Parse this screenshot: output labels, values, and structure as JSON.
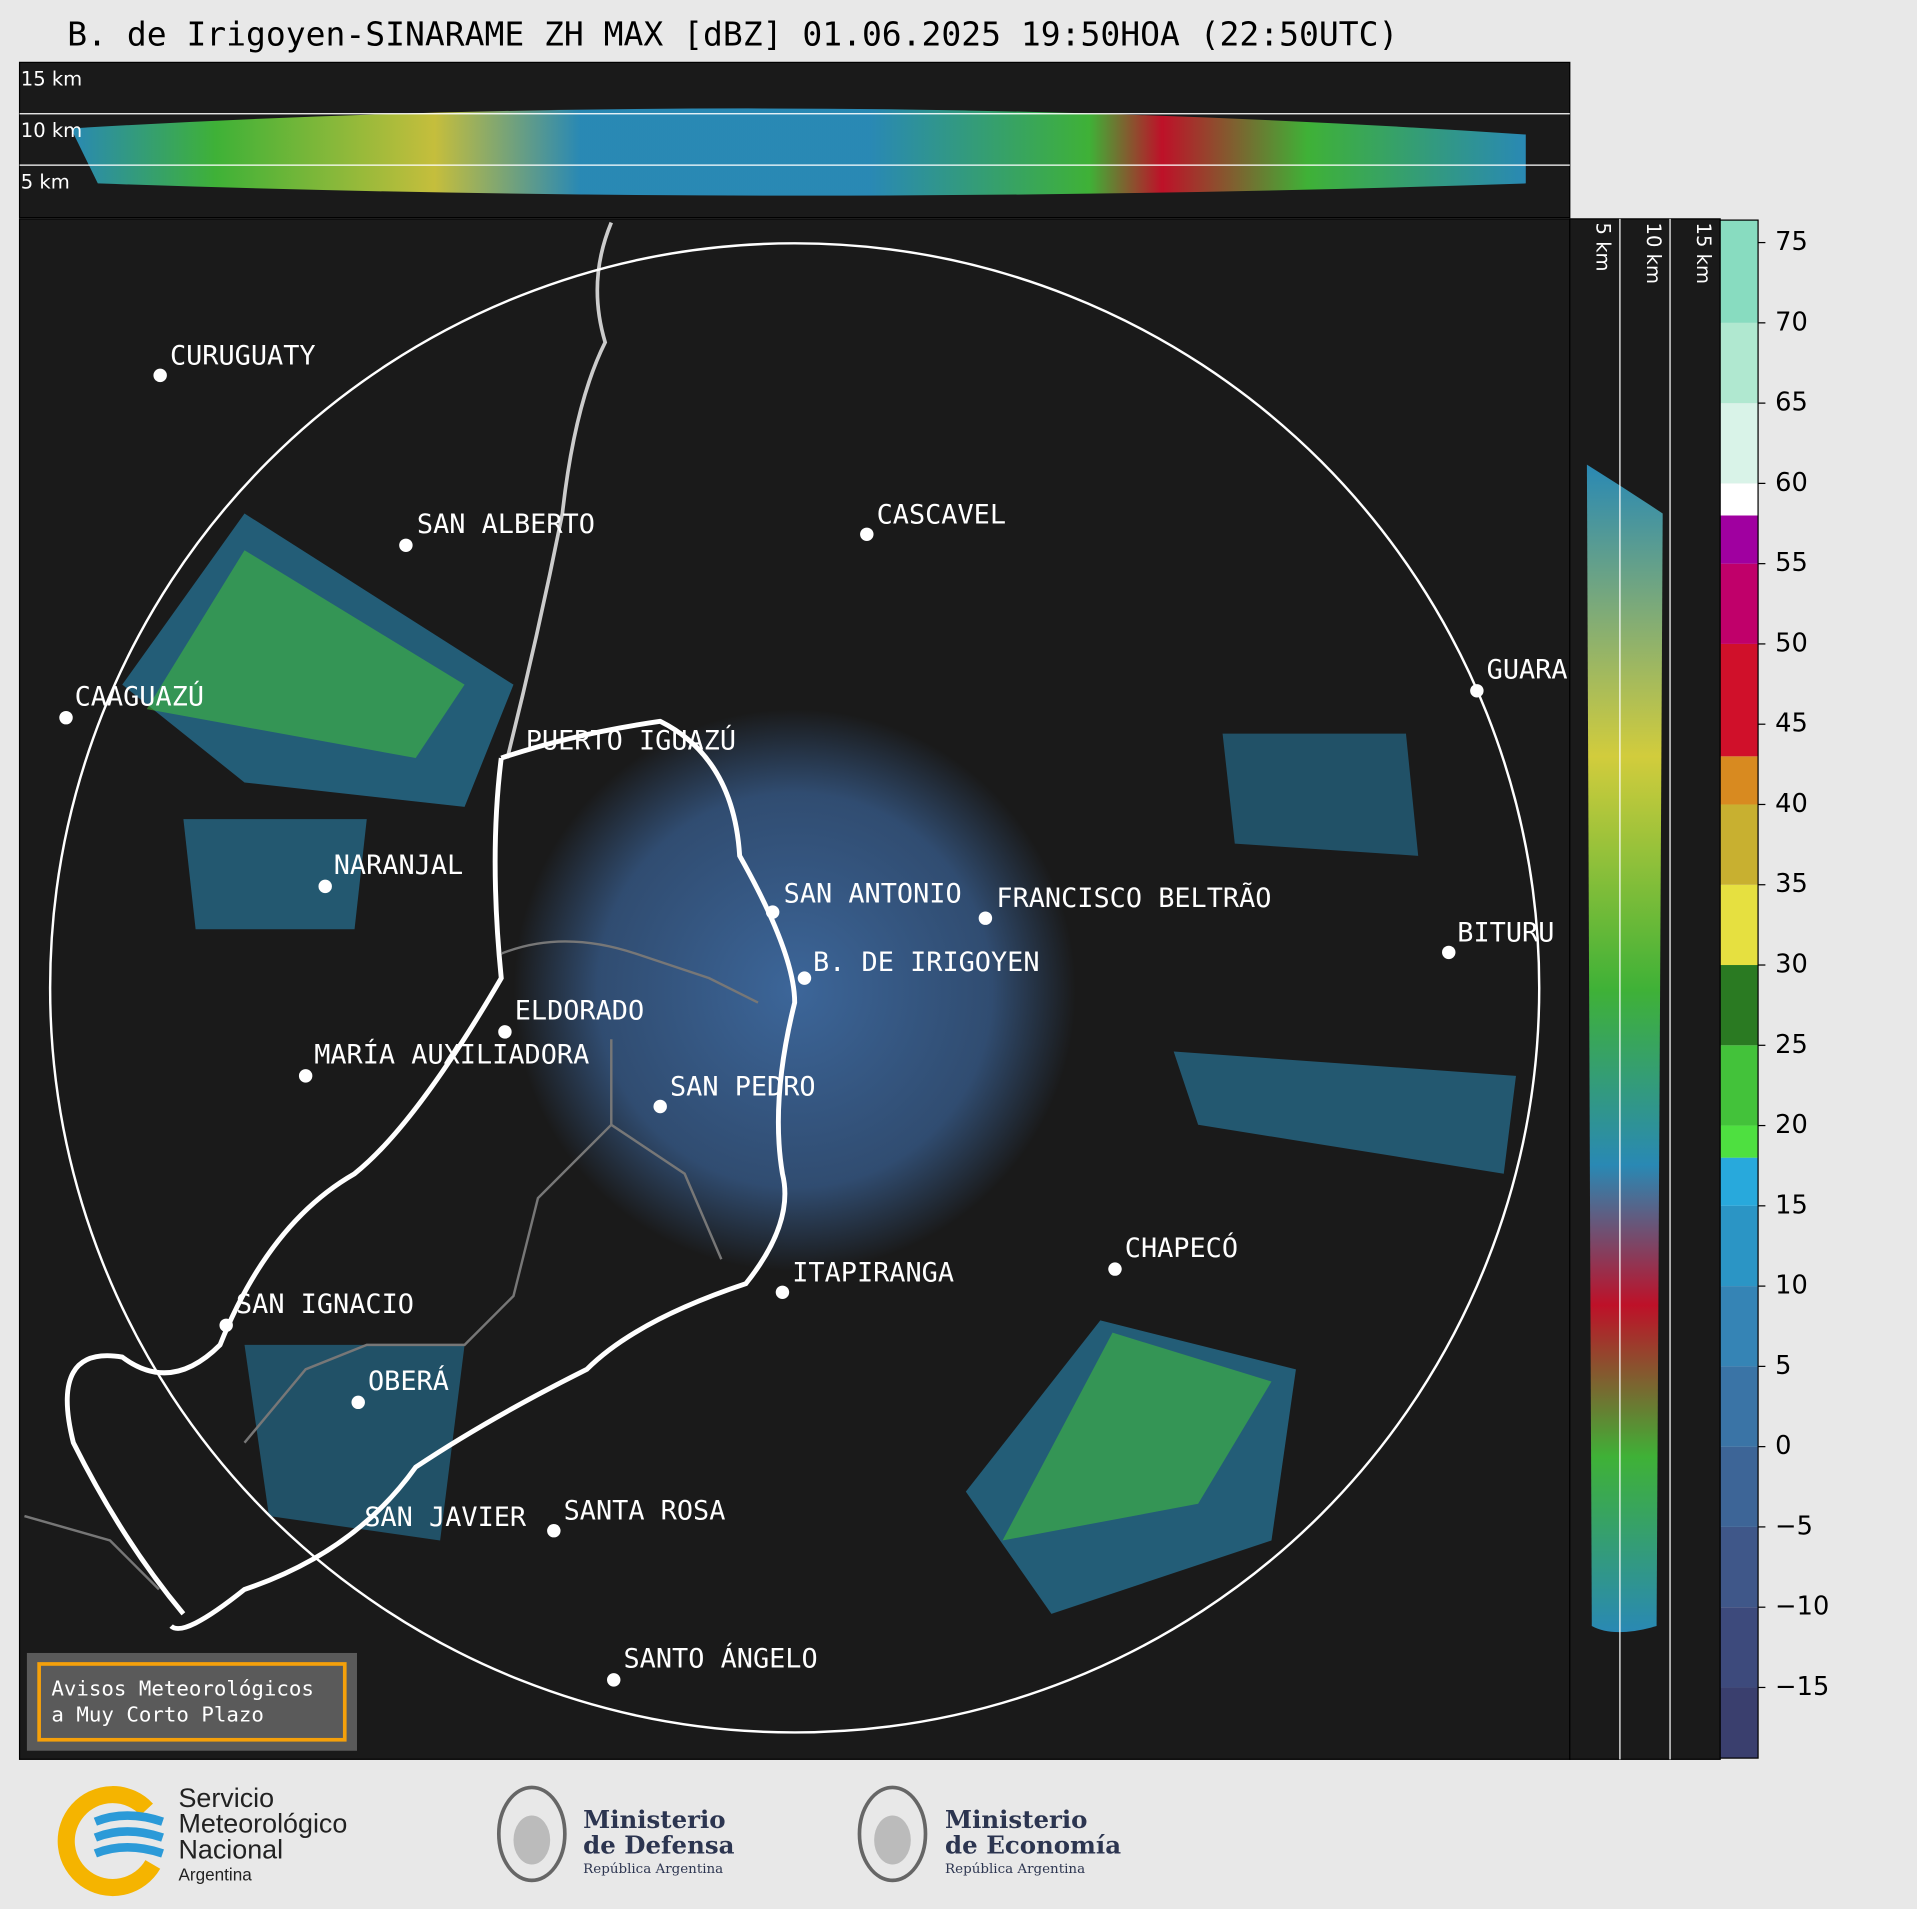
{
  "title": "B. de Irigoyen-SINARAME ZH MAX [dBZ] 01.06.2025 19:50HOA (22:50UTC)",
  "cross_section_top": {
    "height_labels": [
      "15 km",
      "10 km",
      "5 km"
    ]
  },
  "cross_section_side": {
    "height_labels": [
      "5 km",
      "10 km",
      "15 km"
    ]
  },
  "map": {
    "cities": [
      "CURUGUATY",
      "SAN ALBERTO",
      "CAAGUAZÚ",
      "PUERTO IGUAZÚ",
      "CASCAVEL",
      "GUARA",
      "NARANJAL",
      "SAN ANTONIO",
      "FRANCISCO BELTRÃO",
      "BITURU",
      "B. DE IRIGOYEN",
      "ELDORADO",
      "MARÍA AUXILIADORA",
      "SAN PEDRO",
      "CHAPECÓ",
      "ITAPIRANGA",
      "SAN IGNACIO",
      "OBERÁ",
      "SAN JAVIER",
      "SANTA ROSA",
      "SANTO ÁNGELO"
    ]
  },
  "colorbar": {
    "lim": [
      -19.4,
      76.4
    ],
    "ticks": [
      75,
      70,
      65,
      60,
      55,
      50,
      45,
      40,
      35,
      30,
      25,
      20,
      15,
      10,
      5,
      0,
      {
        "value": -5,
        "label": "−5"
      },
      {
        "value": -10,
        "label": "−10"
      },
      {
        "value": -15,
        "label": "−15"
      }
    ],
    "bands": [
      {
        "from": -19.4,
        "to": -15,
        "color": "#3a3f6e"
      },
      {
        "from": -15,
        "to": -10,
        "color": "#3d4a7c"
      },
      {
        "from": -10,
        "to": -5,
        "color": "#3f5789"
      },
      {
        "from": -5,
        "to": 0,
        "color": "#3d6597"
      },
      {
        "from": 0,
        "to": 5,
        "color": "#3a74a6"
      },
      {
        "from": 5,
        "to": 10,
        "color": "#3584b5"
      },
      {
        "from": 10,
        "to": 15,
        "color": "#2b95c5"
      },
      {
        "from": 15,
        "to": 18,
        "color": "#28a9dc"
      },
      {
        "from": 18,
        "to": 20,
        "color": "#4ee040"
      },
      {
        "from": 20,
        "to": 25,
        "color": "#43c23a"
      },
      {
        "from": 25,
        "to": 30,
        "color": "#2a7a22"
      },
      {
        "from": 30,
        "to": 35,
        "color": "#e6e040"
      },
      {
        "from": 35,
        "to": 40,
        "color": "#c8b030"
      },
      {
        "from": 40,
        "to": 43,
        "color": "#d88a20"
      },
      {
        "from": 43,
        "to": 50,
        "color": "#d0102a"
      },
      {
        "from": 50,
        "to": 55,
        "color": "#c0006a"
      },
      {
        "from": 55,
        "to": 58,
        "color": "#a000a0"
      },
      {
        "from": 58,
        "to": 60,
        "color": "#ffffff"
      },
      {
        "from": 60,
        "to": 65,
        "color": "#d9f3e8"
      },
      {
        "from": 65,
        "to": 70,
        "color": "#b0e8d0"
      },
      {
        "from": 70,
        "to": 76.4,
        "color": "#88dcc0"
      }
    ]
  },
  "notice": {
    "lines": [
      "Avisos Meteorológicos",
      "a Muy Corto Plazo"
    ]
  },
  "logos": [
    {
      "lines": [
        "Servicio",
        "Meteorológico",
        "Nacional"
      ],
      "sub": "Argentina"
    },
    {
      "lines": [
        "Ministerio",
        "de Defensa"
      ],
      "sub": "República Argentina"
    },
    {
      "lines": [
        "Ministerio",
        "de Economía"
      ],
      "sub": "República Argentina"
    }
  ]
}
